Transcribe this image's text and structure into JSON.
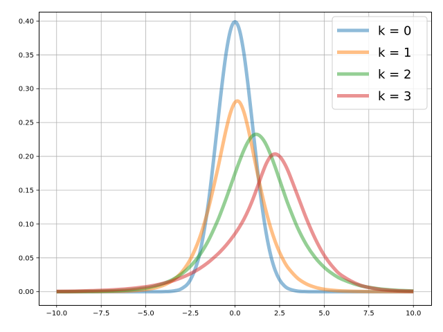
{
  "chart_data": {
    "type": "line",
    "title": "",
    "xlabel": "",
    "ylabel": "",
    "xlim": [
      -11.0,
      11.0
    ],
    "ylim": [
      -0.0197,
      0.4137
    ],
    "xticks": [
      -10.0,
      -7.5,
      -5.0,
      -2.5,
      0.0,
      2.5,
      5.0,
      7.5,
      10.0
    ],
    "xtick_labels": [
      "−10.0",
      "−7.5",
      "−5.0",
      "−2.5",
      "0.0",
      "2.5",
      "5.0",
      "7.5",
      "10.0"
    ],
    "yticks": [
      0.0,
      0.05,
      0.1,
      0.15,
      0.2,
      0.25,
      0.3,
      0.35,
      0.4
    ],
    "ytick_labels": [
      "0.00",
      "0.05",
      "0.10",
      "0.15",
      "0.20",
      "0.25",
      "0.30",
      "0.35",
      "0.40"
    ],
    "grid": true,
    "legend_position": "top-right",
    "x": [
      -10.0,
      -9.0,
      -8.0,
      -7.0,
      -6.0,
      -5.0,
      -4.5,
      -4.0,
      -3.5,
      -3.0,
      -2.5,
      -2.0,
      -1.5,
      -1.0,
      -0.75,
      -0.5,
      -0.25,
      0.0,
      0.25,
      0.5,
      0.75,
      1.0,
      1.25,
      1.5,
      1.75,
      2.0,
      2.25,
      2.5,
      2.75,
      3.0,
      3.5,
      4.0,
      4.5,
      5.0,
      5.5,
      6.0,
      7.0,
      8.0,
      9.0,
      10.0
    ],
    "series": [
      {
        "name": "k = 0",
        "color": "#1f77b4",
        "values": [
          0.0,
          0.0,
          0.0,
          0.0,
          0.0,
          0.0,
          0.0,
          0.0001,
          0.0009,
          0.0044,
          0.0175,
          0.054,
          0.1295,
          0.242,
          0.3011,
          0.3521,
          0.3867,
          0.3989,
          0.3867,
          0.3521,
          0.3011,
          0.242,
          0.1826,
          0.1295,
          0.0863,
          0.054,
          0.0317,
          0.0175,
          0.0091,
          0.0044,
          0.0009,
          0.0001,
          0.0,
          0.0,
          0.0,
          0.0,
          0.0,
          0.0,
          0.0,
          0.0
        ]
      },
      {
        "name": "k = 1",
        "color": "#ff7f0e",
        "values": [
          0.0,
          0.0,
          0.0001,
          0.0003,
          0.001,
          0.0032,
          0.0055,
          0.0096,
          0.0166,
          0.0284,
          0.048,
          0.0783,
          0.1219,
          0.1777,
          0.2088,
          0.2394,
          0.2648,
          0.2798,
          0.2801,
          0.2654,
          0.2397,
          0.2083,
          0.1759,
          0.1455,
          0.118,
          0.0943,
          0.0744,
          0.0581,
          0.0449,
          0.0345,
          0.0201,
          0.0115,
          0.0065,
          0.0036,
          0.002,
          0.0011,
          0.0003,
          0.0001,
          0.0,
          0.0
        ]
      },
      {
        "name": "k = 2",
        "color": "#2ca02c",
        "values": [
          0.0001,
          0.0002,
          0.0005,
          0.0011,
          0.0025,
          0.0055,
          0.0082,
          0.0122,
          0.0179,
          0.026,
          0.0375,
          0.0535,
          0.0752,
          0.1033,
          0.1198,
          0.1374,
          0.1559,
          0.1747,
          0.1928,
          0.2093,
          0.2225,
          0.2308,
          0.2325,
          0.2275,
          0.2172,
          0.2022,
          0.1844,
          0.1652,
          0.146,
          0.1275,
          0.0951,
          0.0695,
          0.0503,
          0.0361,
          0.0258,
          0.0183,
          0.0091,
          0.0045,
          0.0022,
          0.0011
        ]
      },
      {
        "name": "k = 3",
        "color": "#d62728",
        "values": [
          0.0005,
          0.0008,
          0.0015,
          0.0025,
          0.0043,
          0.0073,
          0.0095,
          0.0124,
          0.016,
          0.0207,
          0.0266,
          0.034,
          0.0433,
          0.0547,
          0.0613,
          0.0686,
          0.0767,
          0.0856,
          0.0956,
          0.1071,
          0.1207,
          0.1365,
          0.1542,
          0.1726,
          0.1891,
          0.2,
          0.2035,
          0.2,
          0.1906,
          0.1768,
          0.1427,
          0.1082,
          0.0781,
          0.0538,
          0.0361,
          0.0237,
          0.0098,
          0.0039,
          0.0015,
          0.0006
        ]
      }
    ]
  }
}
